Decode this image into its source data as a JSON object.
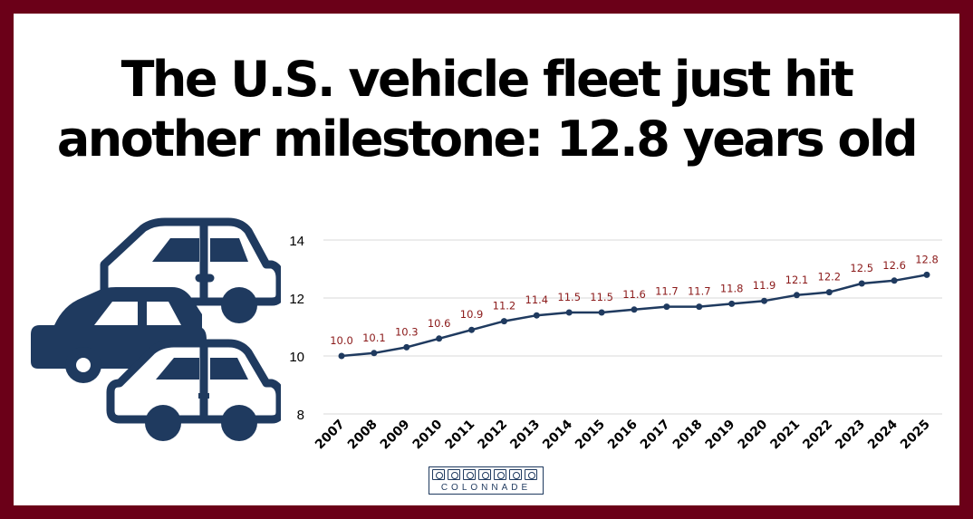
{
  "title_line1": "The U.S. vehicle fleet just hit",
  "title_line2": "another milestone: 12.8 years old",
  "logo_text": "COLONNADE",
  "colors": {
    "frame": "#6b0018",
    "line": "#1f3a5f",
    "label": "#8b1a1a",
    "grid": "#d9d9d9",
    "icon": "#1f3a5f"
  },
  "icons": [
    "car-icon-top",
    "car-icon-middle",
    "car-icon-bottom",
    "colonnade-logo-icon"
  ],
  "chart_data": {
    "type": "line",
    "categories": [
      "2007",
      "2008",
      "2009",
      "2010",
      "2011",
      "2012",
      "2013",
      "2014",
      "2015",
      "2016",
      "2017",
      "2018",
      "2019",
      "2020",
      "2021",
      "2022",
      "2023",
      "2024",
      "2025"
    ],
    "values": [
      10.0,
      10.1,
      10.3,
      10.6,
      10.9,
      11.2,
      11.4,
      11.5,
      11.5,
      11.6,
      11.7,
      11.7,
      11.8,
      11.9,
      12.1,
      12.2,
      12.5,
      12.6,
      12.8
    ],
    "value_labels": [
      "10.0",
      "10.1",
      "10.3",
      "10.6",
      "10.9",
      "11.2",
      "11.4",
      "11.5",
      "11.5",
      "11.6",
      "11.7",
      "11.7",
      "11.8",
      "11.9",
      "12.1",
      "12.2",
      "12.5",
      "12.6",
      "12.8"
    ],
    "yticks": [
      "8",
      "10",
      "12",
      "14"
    ],
    "ylim": [
      8,
      14
    ],
    "grid": true,
    "legend": "none"
  }
}
